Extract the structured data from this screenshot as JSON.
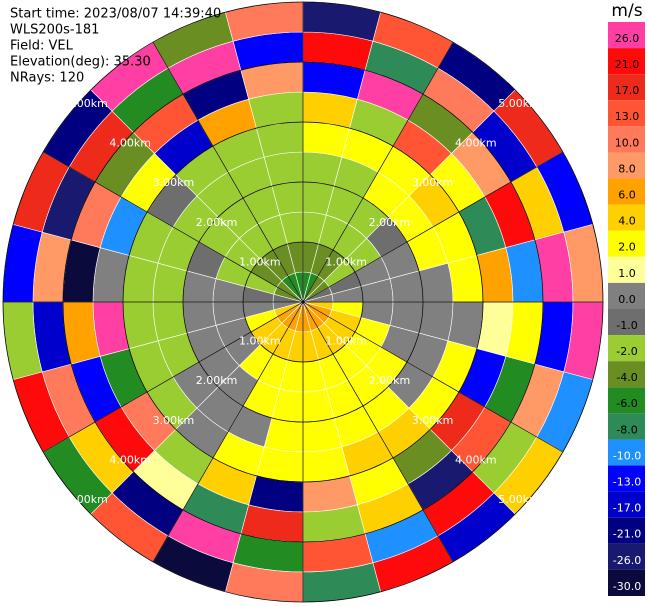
{
  "chart_data": {
    "type": "ppi",
    "header": [
      "Start time: 2023/08/07 14:39:40",
      "WLS200s-181",
      "Field: VEL",
      "Elevation(deg): 35.30",
      "NRays: 120"
    ],
    "colorbar_title": "m/s",
    "colorbar": [
      {
        "value": 26,
        "label": "26.0",
        "color": "#ff3fa4"
      },
      {
        "value": 21,
        "label": "21.0",
        "color": "#ff0a0a"
      },
      {
        "value": 17,
        "label": "17.0",
        "color": "#ee2a1a"
      },
      {
        "value": 13,
        "label": "13.0",
        "color": "#ff5535"
      },
      {
        "value": 10,
        "label": "10.0",
        "color": "#ff7a5a"
      },
      {
        "value": 8,
        "label": "8.0",
        "color": "#ff9966"
      },
      {
        "value": 6,
        "label": "6.0",
        "color": "#ffa200"
      },
      {
        "value": 4,
        "label": "4.0",
        "color": "#ffd000"
      },
      {
        "value": 2,
        "label": "2.0",
        "color": "#ffff00"
      },
      {
        "value": 1,
        "label": "1.0",
        "color": "#ffff99"
      },
      {
        "value": 0,
        "label": "0.0",
        "color": "#808080"
      },
      {
        "value": -1,
        "label": "-1.0",
        "color": "#6e6e6e"
      },
      {
        "value": -2,
        "label": "-2.0",
        "color": "#9acd32"
      },
      {
        "value": -4,
        "label": "-4.0",
        "color": "#6b8e23"
      },
      {
        "value": -6,
        "label": "-6.0",
        "color": "#228b22"
      },
      {
        "value": -8,
        "label": "-8.0",
        "color": "#2e8b57"
      },
      {
        "value": -10,
        "label": "-10.0",
        "color": "#1e90ff"
      },
      {
        "value": -13,
        "label": "-13.0",
        "color": "#0000ff"
      },
      {
        "value": -17,
        "label": "-17.0",
        "color": "#0000cd"
      },
      {
        "value": -21,
        "label": "-21.0",
        "color": "#000080"
      },
      {
        "value": -26,
        "label": "-26.0",
        "color": "#191970"
      },
      {
        "value": -30,
        "label": "-30.0",
        "color": "#0a0a3c"
      }
    ],
    "range_rings": [
      {
        "value": 1,
        "label": "1.00km"
      },
      {
        "value": 2,
        "label": "2.00km"
      },
      {
        "value": 3,
        "label": "3.00km"
      },
      {
        "value": 4,
        "label": "4.00km"
      },
      {
        "value": 5,
        "label": "5.00km"
      }
    ],
    "rlim": [
      0,
      5
    ],
    "field": [
      [
        -6,
        -6,
        -4,
        -4,
        -1,
        0,
        4,
        6,
        6,
        6,
        6,
        6,
        6,
        6,
        6,
        6,
        4,
        0,
        -1,
        -4,
        -4,
        -6,
        -6,
        -6
      ],
      [
        -4,
        -4,
        -4,
        -2,
        -1,
        0,
        2,
        4,
        4,
        4,
        4,
        4,
        4,
        4,
        4,
        4,
        2,
        0,
        -1,
        -2,
        -4,
        -4,
        -4,
        -4
      ],
      [
        -2,
        -2,
        -2,
        -2,
        0,
        0,
        0,
        2,
        2,
        2,
        2,
        2,
        2,
        2,
        2,
        0,
        0,
        0,
        0,
        -2,
        -2,
        -2,
        -2,
        -2
      ],
      [
        -2,
        -2,
        -2,
        -1,
        0,
        0,
        0,
        0,
        2,
        2,
        2,
        2,
        2,
        2,
        0,
        0,
        0,
        0,
        0,
        -1,
        -2,
        -2,
        -2,
        -2
      ],
      [
        -2,
        -2,
        2,
        2,
        2,
        0,
        0,
        0,
        0,
        2,
        2,
        2,
        2,
        0,
        0,
        0,
        -2,
        -2,
        -2,
        -2,
        -2,
        -2,
        -2,
        -2
      ],
      [
        2,
        2,
        2,
        4,
        2,
        2,
        0,
        2,
        2,
        4,
        4,
        2,
        2,
        2,
        0,
        -2,
        -2,
        -2,
        -2,
        -2,
        -1,
        -2,
        -2,
        -2
      ],
      [
        4,
        -2,
        13,
        2,
        -8,
        6,
        1,
        -13,
        17,
        -4,
        2,
        8,
        -21,
        4,
        -2,
        10,
        -6,
        26,
        0,
        -10,
        2,
        -17,
        6,
        -2
      ],
      [
        -13,
        26,
        -4,
        8,
        21,
        -10,
        2,
        -6,
        13,
        -26,
        4,
        -2,
        17,
        -8,
        1,
        21,
        -13,
        6,
        -30,
        10,
        -4,
        13,
        -21,
        8
      ],
      [
        21,
        -8,
        10,
        -17,
        4,
        26,
        -13,
        8,
        -2,
        21,
        -10,
        13,
        -6,
        26,
        -21,
        4,
        10,
        -17,
        8,
        -26,
        17,
        -6,
        26,
        -13
      ],
      [
        -26,
        13,
        -21,
        17,
        -13,
        8,
        26,
        -10,
        4,
        -17,
        21,
        -8,
        10,
        -30,
        13,
        -6,
        21,
        -2,
        -13,
        17,
        -21,
        26,
        -4,
        10
      ]
    ]
  }
}
